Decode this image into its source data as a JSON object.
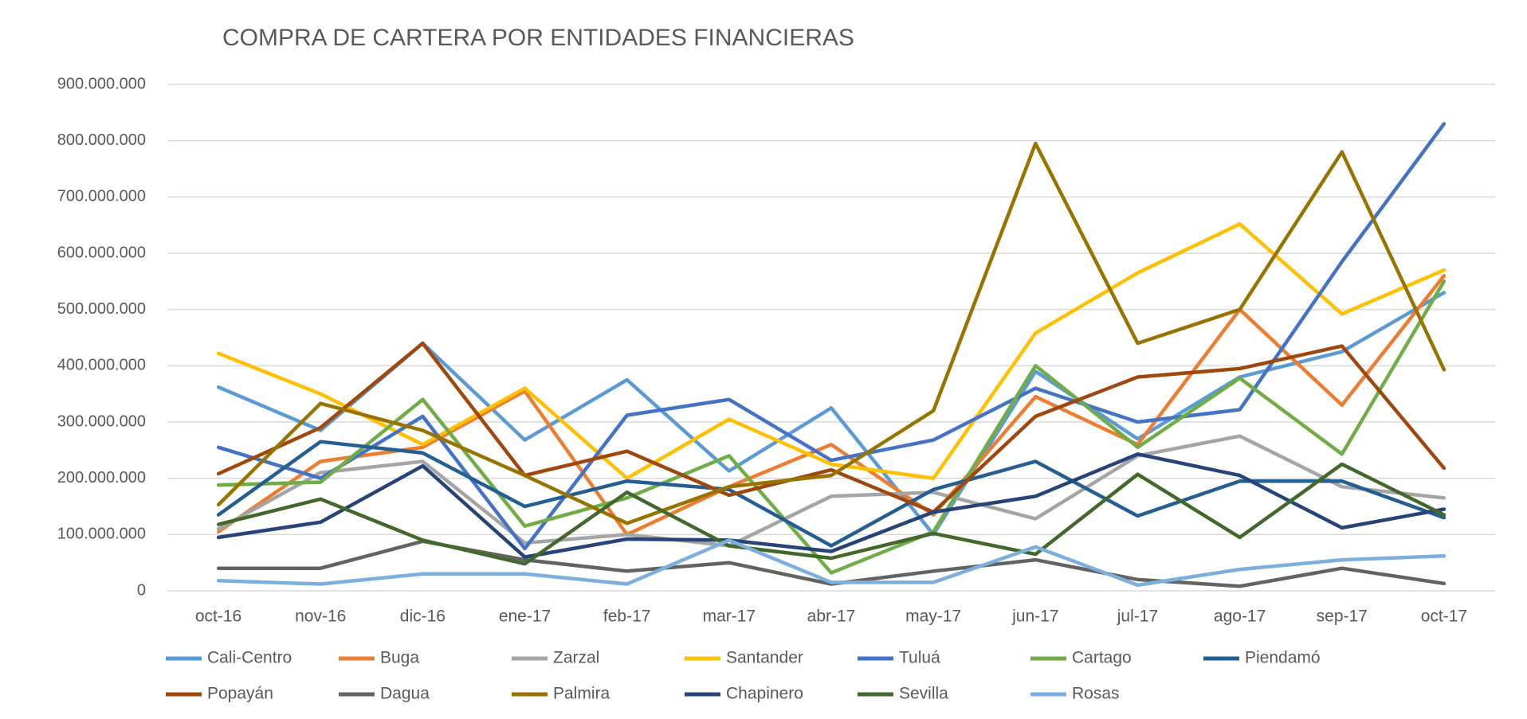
{
  "chart_data": {
    "type": "line",
    "title": "COMPRA DE CARTERA POR ENTIDADES FINANCIERAS",
    "categories": [
      "oct-16",
      "nov-16",
      "dic-16",
      "ene-17",
      "feb-17",
      "mar-17",
      "abr-17",
      "may-17",
      "jun-17",
      "jul-17",
      "ago-17",
      "sep-17",
      "oct-17"
    ],
    "ylim": [
      0,
      900000000
    ],
    "yticks": [
      0,
      {
        "value": 100000000,
        "label": "100.000.000"
      },
      {
        "value": 200000000,
        "label": "200.000.000"
      },
      {
        "value": 300000000,
        "label": "300.000.000"
      },
      {
        "value": 400000000,
        "label": "400.000.000"
      },
      {
        "value": 500000000,
        "label": "500.000.000"
      },
      {
        "value": 600000000,
        "label": "600.000.000"
      },
      {
        "value": 700000000,
        "label": "700.000.000"
      },
      {
        "value": 800000000,
        "label": "800.000.000"
      },
      {
        "value": 900000000,
        "label": "900.000.000"
      }
    ],
    "grid": true,
    "legend": "bottom",
    "series": [
      {
        "name": "Cali-Centro",
        "color": "#5B9BD5",
        "values": [
          362000000,
          285000000,
          440000000,
          268000000,
          375000000,
          213000000,
          325000000,
          100000000,
          390000000,
          270000000,
          380000000,
          425000000,
          530000000
        ]
      },
      {
        "name": "Buga",
        "color": "#ED7D31",
        "values": [
          105000000,
          230000000,
          255000000,
          355000000,
          100000000,
          185000000,
          260000000,
          135000000,
          345000000,
          260000000,
          500000000,
          330000000,
          560000000
        ]
      },
      {
        "name": "Zarzal",
        "color": "#A5A5A5",
        "values": [
          110000000,
          210000000,
          230000000,
          85000000,
          100000000,
          80000000,
          168000000,
          175000000,
          128000000,
          240000000,
          275000000,
          185000000,
          165000000
        ]
      },
      {
        "name": "Santander",
        "color": "#FFC000",
        "values": [
          422000000,
          350000000,
          260000000,
          360000000,
          200000000,
          305000000,
          225000000,
          200000000,
          458000000,
          565000000,
          652000000,
          492000000,
          570000000
        ]
      },
      {
        "name": "Tuluá",
        "color": "#4472C4",
        "values": [
          255000000,
          200000000,
          310000000,
          75000000,
          312000000,
          340000000,
          232000000,
          268000000,
          360000000,
          300000000,
          322000000,
          585000000,
          830000000
        ]
      },
      {
        "name": "Cartago",
        "color": "#70AD47",
        "values": [
          188000000,
          193000000,
          340000000,
          115000000,
          165000000,
          240000000,
          32000000,
          105000000,
          400000000,
          255000000,
          378000000,
          243000000,
          550000000
        ]
      },
      {
        "name": "Piendamó",
        "color": "#255E91",
        "values": [
          135000000,
          265000000,
          245000000,
          150000000,
          195000000,
          180000000,
          80000000,
          180000000,
          230000000,
          133000000,
          195000000,
          195000000,
          130000000
        ]
      },
      {
        "name": "Popayán",
        "color": "#9E480E",
        "values": [
          208000000,
          290000000,
          440000000,
          205000000,
          248000000,
          170000000,
          215000000,
          140000000,
          310000000,
          380000000,
          395000000,
          435000000,
          218000000
        ]
      },
      {
        "name": "Dagua",
        "color": "#636363",
        "values": [
          40000000,
          40000000,
          88000000,
          55000000,
          35000000,
          50000000,
          12000000,
          35000000,
          55000000,
          20000000,
          8000000,
          40000000,
          13000000
        ]
      },
      {
        "name": "Palmira",
        "color": "#997300",
        "values": [
          153000000,
          333000000,
          285000000,
          205000000,
          120000000,
          185000000,
          205000000,
          320000000,
          795000000,
          440000000,
          500000000,
          780000000,
          393000000
        ]
      },
      {
        "name": "Chapinero",
        "color": "#264478",
        "values": [
          95000000,
          122000000,
          222000000,
          60000000,
          92000000,
          90000000,
          70000000,
          140000000,
          168000000,
          243000000,
          205000000,
          112000000,
          145000000
        ]
      },
      {
        "name": "Sevilla",
        "color": "#43682B",
        "values": [
          118000000,
          163000000,
          90000000,
          48000000,
          175000000,
          80000000,
          58000000,
          102000000,
          65000000,
          207000000,
          95000000,
          225000000,
          135000000
        ]
      },
      {
        "name": "Rosas",
        "color": "#7CAFDD",
        "values": [
          18000000,
          12000000,
          30000000,
          30000000,
          12000000,
          90000000,
          15000000,
          15000000,
          78000000,
          10000000,
          38000000,
          55000000,
          62000000
        ]
      }
    ]
  }
}
